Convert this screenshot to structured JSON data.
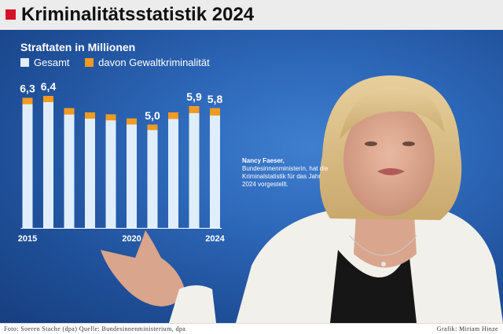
{
  "header": {
    "title": "Kriminalitätsstatistik 2024"
  },
  "colors": {
    "accent": "#d7102a",
    "total": "#dfeefa",
    "violent": "#f39a21",
    "background": "#2d67b8"
  },
  "chart_data": {
    "type": "bar",
    "title": "Straftaten in Millionen",
    "legend": [
      "Gesamt",
      "davon Gewaltkriminalität"
    ],
    "x": [
      2015,
      2016,
      2017,
      2018,
      2019,
      2020,
      2021,
      2022,
      2023,
      2024
    ],
    "x_tick_labels": [
      "2015",
      "2020",
      "2024"
    ],
    "x_ticks_at": [
      2015,
      2020,
      2024
    ],
    "series": [
      {
        "name": "Gesamt",
        "values": [
          6.3,
          6.4,
          5.8,
          5.6,
          5.5,
          5.3,
          5.0,
          5.6,
          5.9,
          5.8
        ]
      },
      {
        "name": "davon Gewaltkriminalität",
        "values": [
          0.19,
          0.19,
          0.19,
          0.19,
          0.18,
          0.18,
          0.16,
          0.2,
          0.21,
          0.22
        ]
      }
    ],
    "value_labels": [
      {
        "x": 2015,
        "label": "6,3"
      },
      {
        "x": 2016,
        "label": "6,4"
      },
      {
        "x": 2021,
        "label": "5,0"
      },
      {
        "x": 2023,
        "label": "5,9"
      },
      {
        "x": 2024,
        "label": "5,8"
      }
    ],
    "ylim": [
      0,
      6.4
    ],
    "grid": false,
    "legend_position": "top-left"
  },
  "caption": {
    "name": "Nancy Faeser,",
    "text": "Bundesinnenministerin, hat die Kriminalstatistik für das Jahr 2024 vorgestellt."
  },
  "footer": {
    "left": "Foto: Soeren Stache (dpa)  Quelle: Bundesinnenministerium, dpa",
    "right": "Grafik: Miriam Hinze"
  }
}
